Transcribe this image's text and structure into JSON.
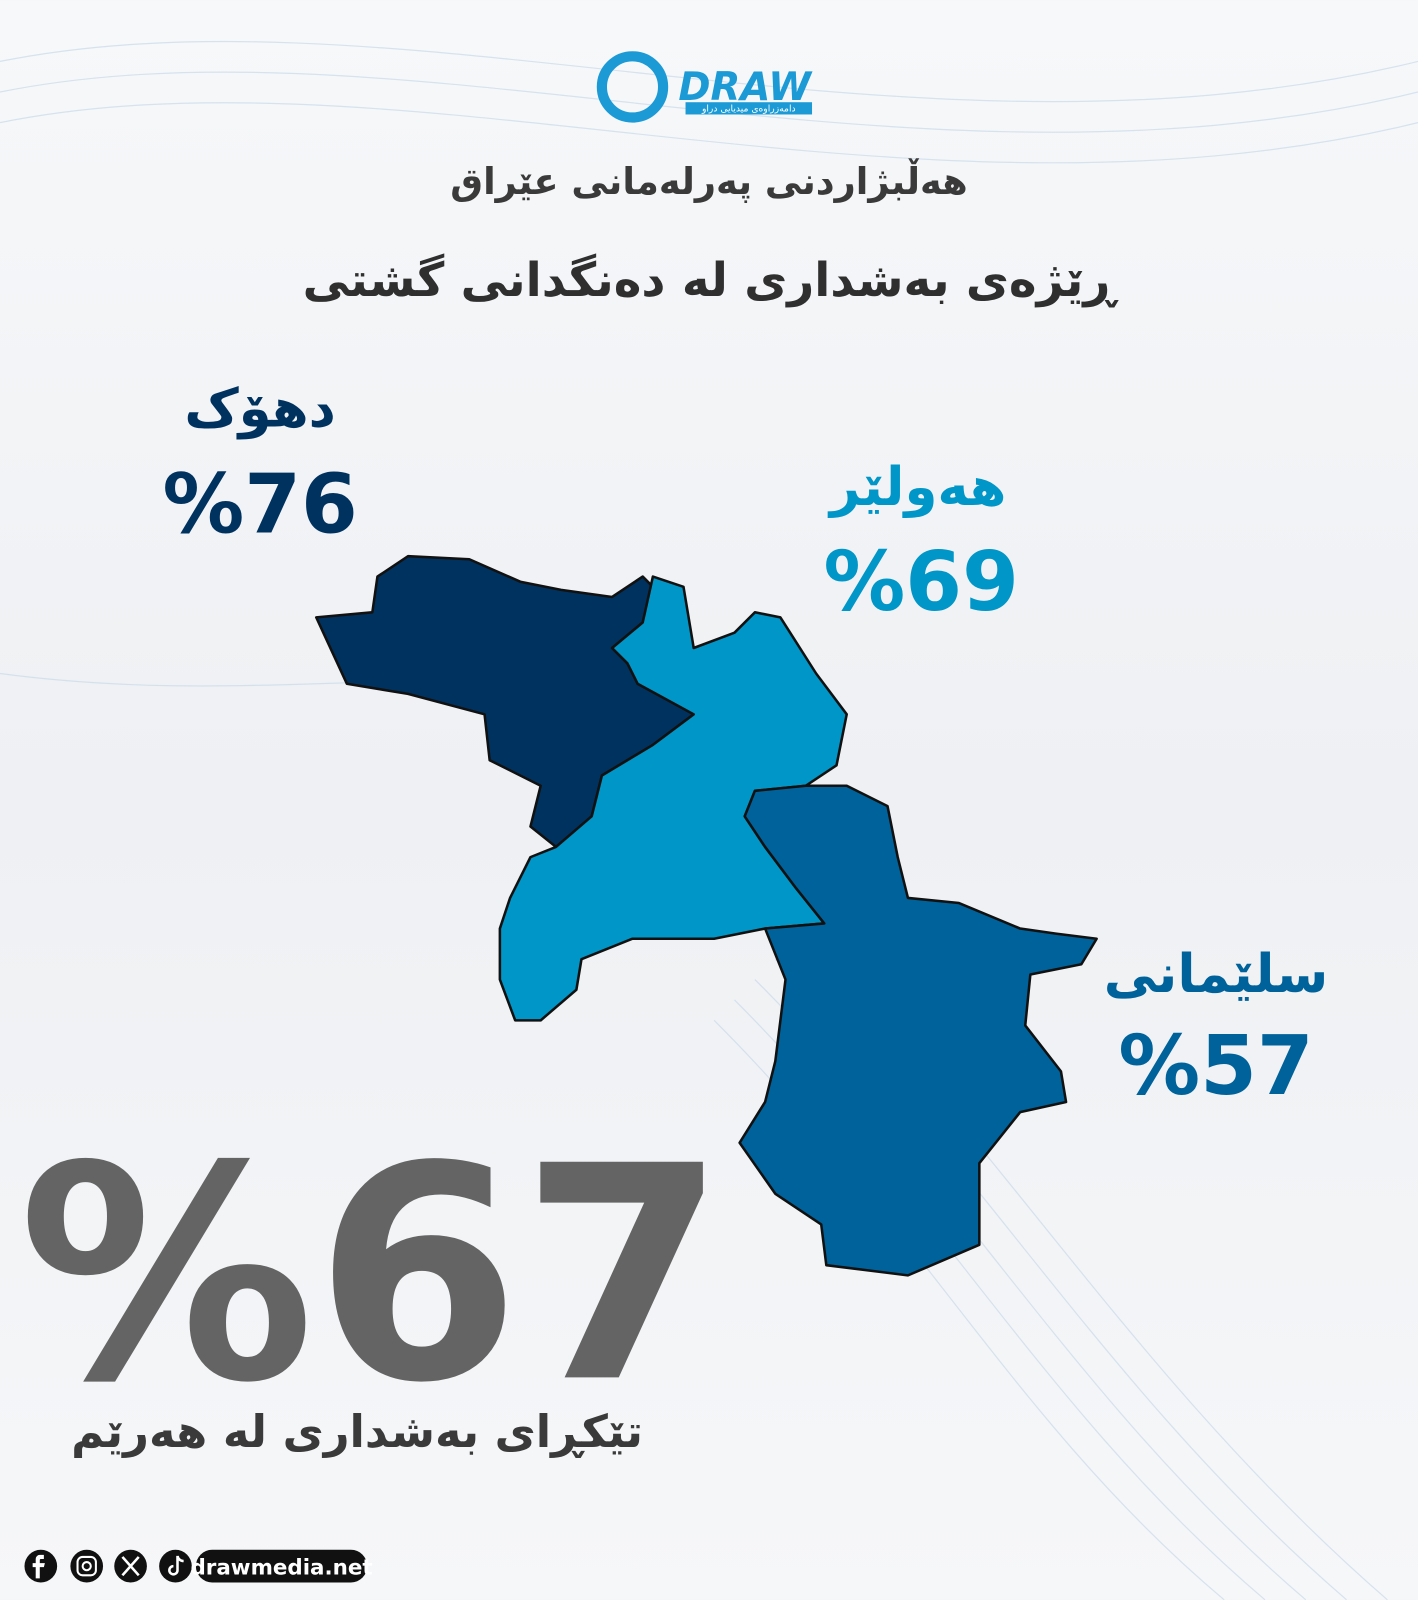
{
  "logo": {
    "name": "DRAW",
    "tagline": "دامەزراوەی میدیایی دراو"
  },
  "header": {
    "title": "هەڵبژاردنی پەرلەمانی عێراق",
    "subtitle": "ڕێژەی بەشداری لە دەنگدانی گشتی"
  },
  "regions": [
    {
      "name": "دهۆک",
      "percent": "%76"
    },
    {
      "name": "هەولێر",
      "percent": "%69"
    },
    {
      "name": "سلێمانی",
      "percent": "%57"
    }
  ],
  "total": {
    "percent": "%67",
    "caption": "تێکڕای بەشداری لە هەرێم"
  },
  "footer": {
    "website": "drawmedia.net"
  }
}
